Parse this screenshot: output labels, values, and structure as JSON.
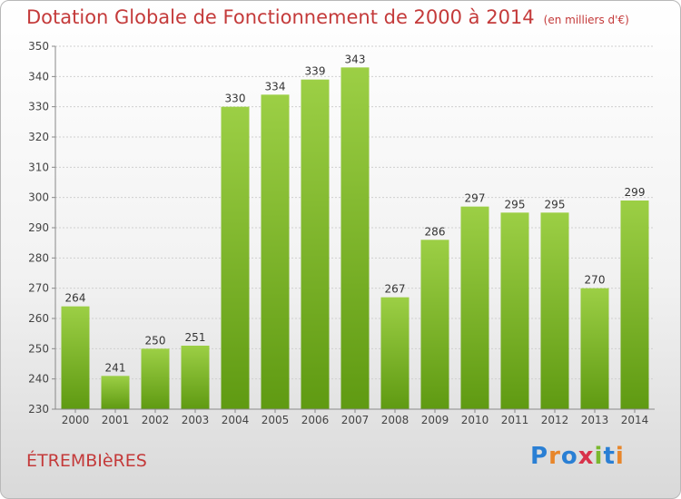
{
  "header": {
    "title": "Dotation Globale de Fonctionnement de 2000 à 2014",
    "unit": "(en milliers d'€)"
  },
  "footer": {
    "town": "ÉTREMBIèRES",
    "logo_text": "Proxiti"
  },
  "colors": {
    "bar_light": "#9ccf45",
    "bar_dark": "#5f9a12",
    "title": "#c43a3a"
  },
  "chart_data": {
    "type": "bar",
    "title": "Dotation Globale de Fonctionnement de 2000 à 2014",
    "subtitle": "(en milliers d'€)",
    "categories": [
      "2000",
      "2001",
      "2002",
      "2003",
      "2004",
      "2005",
      "2006",
      "2007",
      "2008",
      "2009",
      "2010",
      "2011",
      "2012",
      "2013",
      "2014"
    ],
    "values": [
      264,
      241,
      250,
      251,
      330,
      334,
      339,
      343,
      267,
      286,
      297,
      295,
      295,
      270,
      299
    ],
    "ylim": [
      230,
      350
    ],
    "yticks": [
      230,
      240,
      250,
      260,
      270,
      280,
      290,
      300,
      310,
      320,
      330,
      340,
      350
    ],
    "grid": true,
    "data_labels": true
  }
}
